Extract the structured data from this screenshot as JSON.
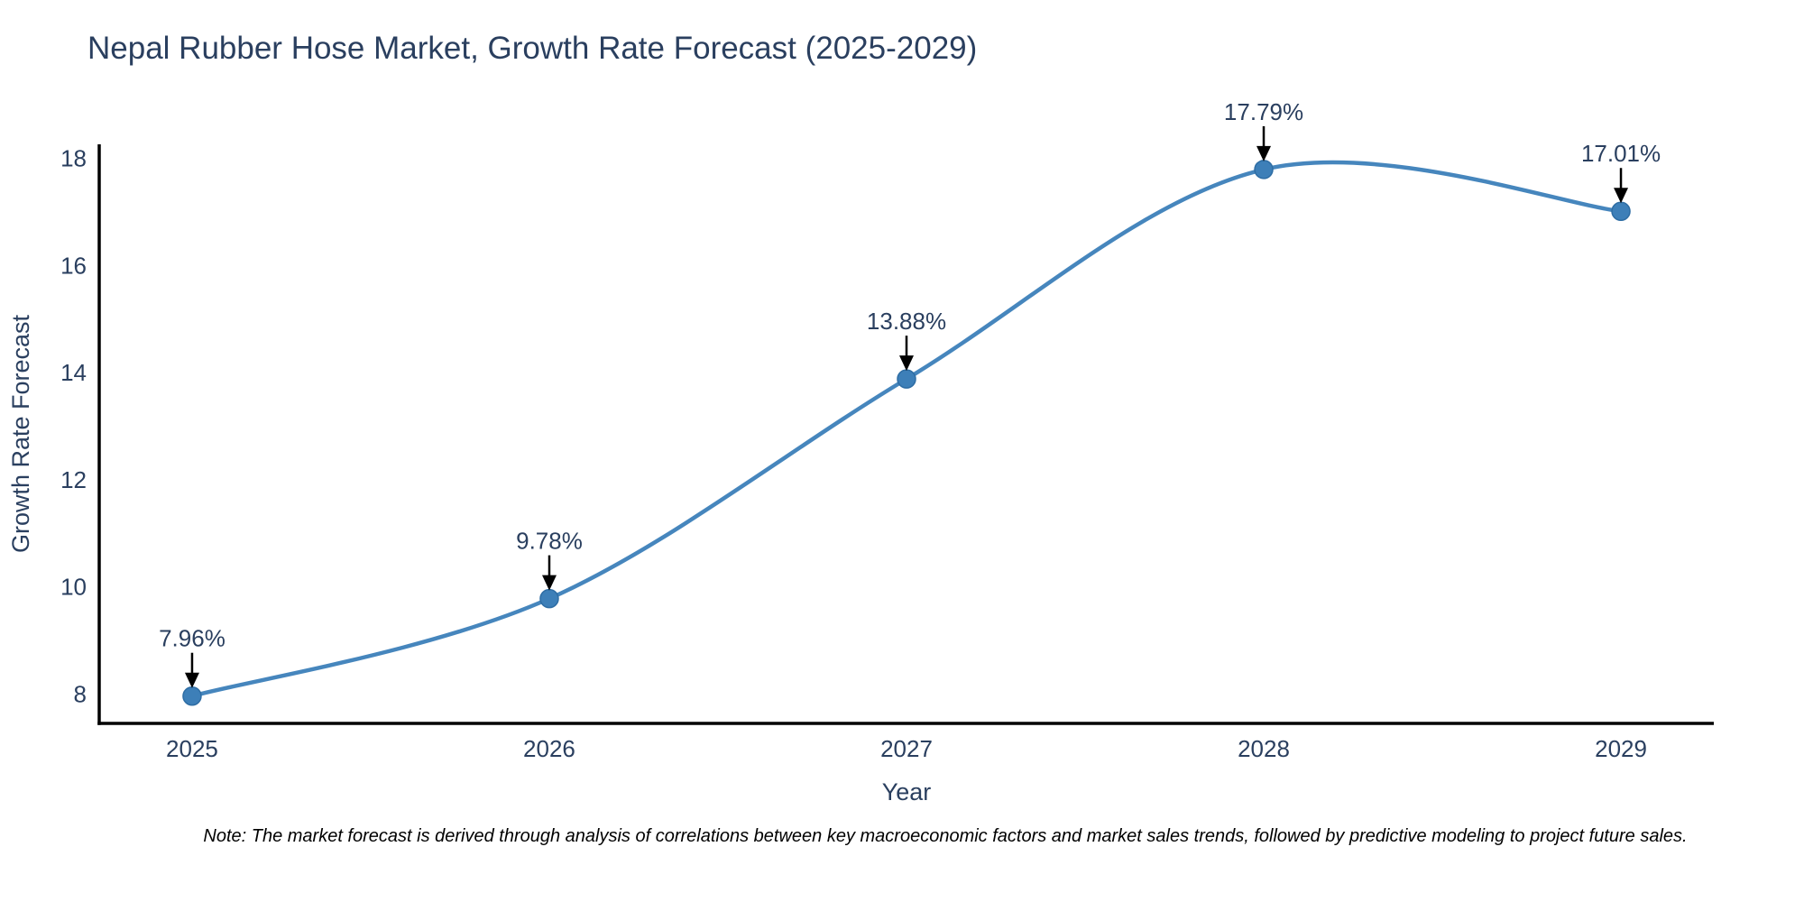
{
  "title": "Nepal Rubber Hose Market, Growth Rate Forecast (2025-2029)",
  "note": "Note: The market forecast is derived through analysis of correlations between key macroeconomic factors and market sales trends, followed by predictive modeling to project future sales.",
  "chart_data": {
    "type": "line",
    "line_shape": "spline",
    "title": "Nepal Rubber Hose Market, Growth Rate Forecast (2025-2029)",
    "xlabel": "Year",
    "ylabel": "Growth Rate Forecast",
    "x": [
      2025,
      2026,
      2027,
      2028,
      2029
    ],
    "values": [
      7.96,
      9.78,
      13.88,
      17.79,
      17.01
    ],
    "point_labels": [
      "7.96%",
      "9.78%",
      "13.88%",
      "17.79%",
      "17.01%"
    ],
    "x_tick_labels": [
      "2025",
      "2026",
      "2027",
      "2028",
      "2029"
    ],
    "y_ticks": [
      8,
      10,
      12,
      14,
      16,
      18
    ],
    "xlim": [
      2024.74,
      2029.26
    ],
    "ylim": [
      7.45,
      18.26
    ],
    "grid": false,
    "legend": "none",
    "markers": true,
    "annotations_arrows": true,
    "colors": {
      "line": "#4686bd",
      "marker_fill": "#3d7fb8",
      "marker_edge": "#2e6da4",
      "axis_line": "#000000",
      "chart_text": "#2a3f5f",
      "arrow": "#000000",
      "note_text": "#000000",
      "background": "#ffffff"
    }
  }
}
